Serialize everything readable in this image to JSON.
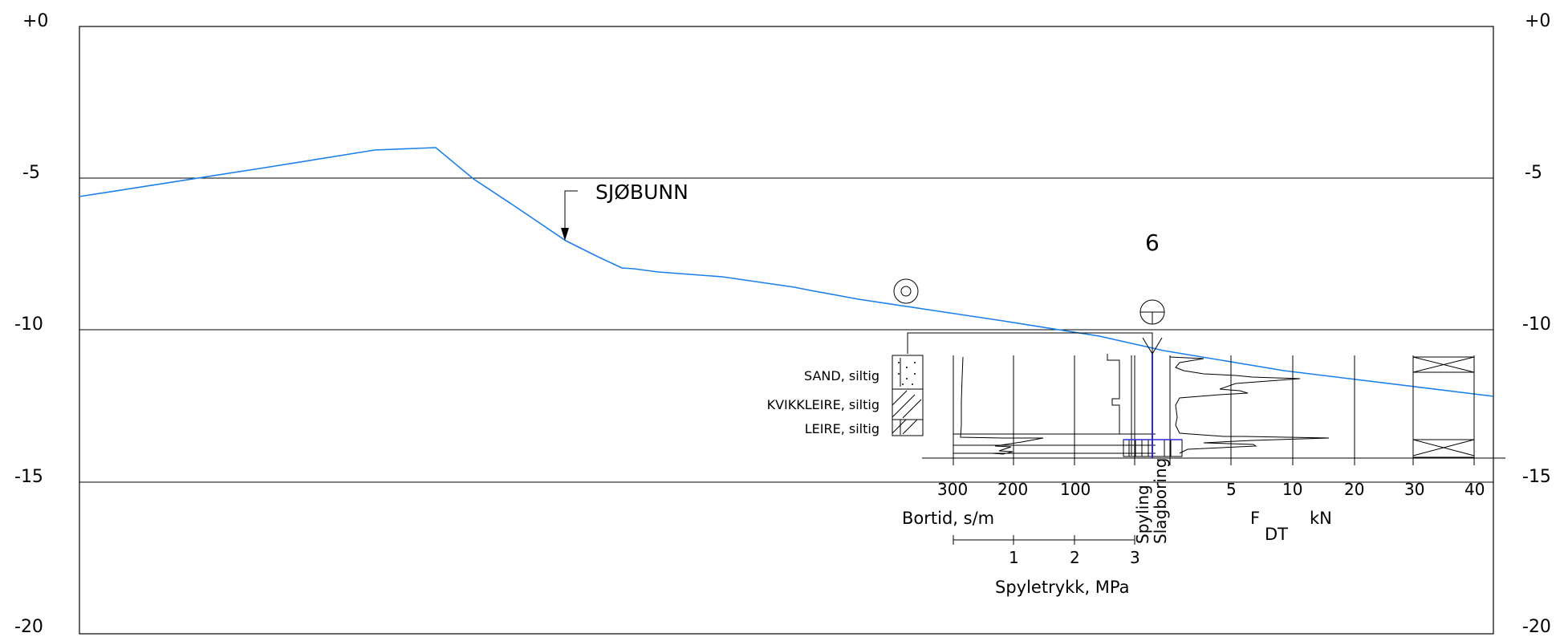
{
  "depth_axis": {
    "left_labels": [
      "+0",
      "-5",
      "-10",
      "-15",
      "-20"
    ],
    "right_labels": [
      "+0",
      "-5",
      "-10",
      "-15",
      "-20"
    ]
  },
  "seabed": {
    "label": "SJØBUNN",
    "color": "#1a7fe8"
  },
  "borehole": {
    "number": "6"
  },
  "soil_layers": {
    "sand": "SAND, siltig",
    "kvikkleire": "KVIKKLEIRE, siltig",
    "leire": "LEIRE, siltig"
  },
  "bortid": {
    "ticks": [
      "300",
      "200",
      "100"
    ],
    "label": "Bortid, s/m"
  },
  "spyletrykk": {
    "ticks": [
      "1",
      "2",
      "3"
    ],
    "label": "Spyletrykk, MPa"
  },
  "force": {
    "ticks": [
      "5",
      "10",
      "20",
      "30",
      "40"
    ],
    "label_f": "F",
    "label_sub": "DT",
    "label_unit": "kN"
  },
  "vertical_labels": {
    "spyling": "Spyling",
    "slagboring": "Slagboring"
  },
  "method_color": "#2b2bd6"
}
